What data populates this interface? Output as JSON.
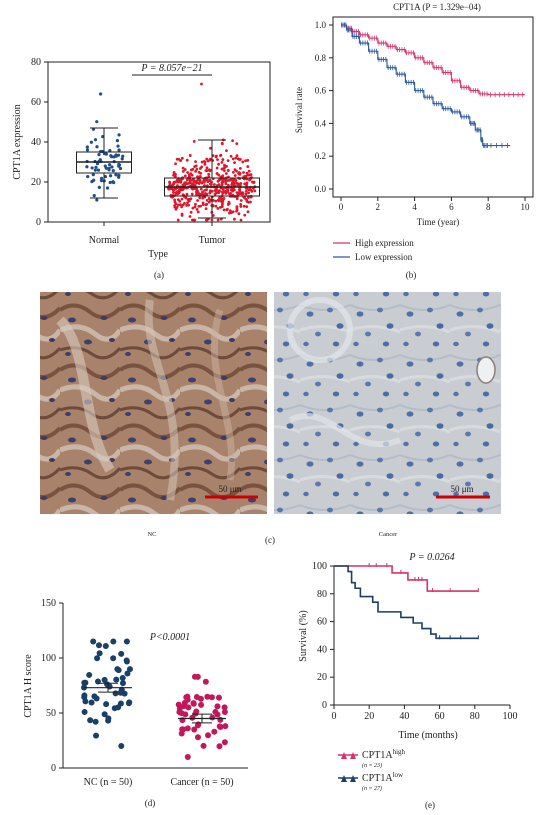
{
  "panel_labels": {
    "a": "(a)",
    "b": "(b)",
    "c": "(c)",
    "d": "(d)",
    "e": "(e)"
  },
  "colors": {
    "normal_dot": "#1f4e8c",
    "tumor_dot": "#e0162b",
    "high": "#d6336c",
    "low": "#2c5aa0",
    "nc_dot": "#1b3f66",
    "cancer_dot": "#c2185b",
    "scale_bar": "#cc0000"
  },
  "chart_data": [
    {
      "id": "a",
      "type": "scatter",
      "ylabel": "CPT1A expression",
      "xlabel": "Type",
      "categories": [
        "Normal",
        "Tumor"
      ],
      "yticks": [
        0,
        20,
        40,
        60,
        80
      ],
      "ylim": [
        0,
        80
      ],
      "pvalue_text": "P = 8.057e−21",
      "box": [
        {
          "name": "Normal",
          "whisker_low": 12,
          "q1": 24.5,
          "median": 30,
          "q3": 35,
          "whisker_high": 47,
          "n_points": 70,
          "max_point": 64
        },
        {
          "name": "Tumor",
          "whisker_low": 2,
          "q1": 13,
          "median": 17.5,
          "q3": 22,
          "whisker_high": 41,
          "n_points": 520,
          "max_point": 69
        }
      ]
    },
    {
      "id": "b",
      "type": "line",
      "title": "CPT1A (P = 1.329e−04)",
      "xlabel": "Time (year)",
      "ylabel": "Survival rate",
      "xticks": [
        0,
        2,
        4,
        6,
        8,
        10
      ],
      "yticks": [
        "0.0",
        "0.2",
        "0.4",
        "0.6",
        "0.8",
        "1.0"
      ],
      "xlim": [
        0,
        10
      ],
      "ylim": [
        0,
        1
      ],
      "legend": [
        "High expression",
        "Low expression"
      ],
      "series": [
        {
          "name": "High expression",
          "x": [
            0,
            0.3,
            0.6,
            1.0,
            1.5,
            2.0,
            2.5,
            3.0,
            3.5,
            4.0,
            4.5,
            5.0,
            5.5,
            6.0,
            6.5,
            7.0,
            7.5,
            8.0,
            9.0,
            10.0
          ],
          "y": [
            1.0,
            0.98,
            0.96,
            0.94,
            0.92,
            0.89,
            0.87,
            0.85,
            0.83,
            0.8,
            0.77,
            0.74,
            0.71,
            0.66,
            0.62,
            0.6,
            0.58,
            0.575,
            0.575,
            0.575
          ]
        },
        {
          "name": "Low expression",
          "x": [
            0,
            0.3,
            0.6,
            1.0,
            1.5,
            2.0,
            2.5,
            3.0,
            3.5,
            4.0,
            4.5,
            5.0,
            5.5,
            6.0,
            6.5,
            7.0,
            7.3,
            7.6,
            7.7,
            8.0,
            9.2
          ],
          "y": [
            1.0,
            0.97,
            0.93,
            0.89,
            0.84,
            0.79,
            0.74,
            0.7,
            0.65,
            0.6,
            0.56,
            0.52,
            0.49,
            0.47,
            0.44,
            0.4,
            0.36,
            0.3,
            0.265,
            0.265,
            0.265
          ]
        }
      ]
    },
    {
      "id": "d",
      "type": "scatter",
      "ylabel": "CPT1A H score",
      "categories": [
        "NC (n = 50)",
        "Cancer (n = 50)"
      ],
      "yticks": [
        0,
        50,
        100,
        150
      ],
      "ylim": [
        0,
        150
      ],
      "pvalue_text": "P<0.0001",
      "groups": [
        {
          "name": "NC",
          "n": 50,
          "mean": 73,
          "sd_low": 69,
          "sd_high": 77,
          "min": 20,
          "max": 115
        },
        {
          "name": "Cancer",
          "n": 50,
          "mean": 45,
          "sd_low": 41,
          "sd_high": 49,
          "min": 10,
          "max": 83
        }
      ]
    },
    {
      "id": "e",
      "type": "line",
      "xlabel": "Time (months)",
      "ylabel": "Survival (%)",
      "xticks": [
        0,
        20,
        40,
        60,
        80,
        100
      ],
      "yticks": [
        0,
        20,
        40,
        60,
        80,
        100
      ],
      "xlim": [
        0,
        100
      ],
      "ylim": [
        0,
        100
      ],
      "pvalue_text": "P = 0.0264",
      "series": [
        {
          "name": "CPT1Ahigh",
          "legend_main": "CPT1A",
          "legend_sup": "high",
          "legend_n": "(n = 23)",
          "x": [
            0,
            33,
            33,
            42,
            42,
            53,
            53,
            82
          ],
          "y": [
            100,
            100,
            95,
            95,
            90,
            90,
            82,
            82
          ],
          "censor_x": [
            20,
            24,
            30,
            38,
            46,
            48,
            50,
            56,
            66,
            82
          ]
        },
        {
          "name": "CPT1Alow",
          "legend_main": "CPT1A",
          "legend_sup": "low",
          "legend_n": "(n = 27)",
          "x": [
            0,
            8,
            8,
            10,
            10,
            12,
            12,
            15,
            15,
            22,
            22,
            25,
            25,
            38,
            38,
            45,
            45,
            50,
            50,
            55,
            55,
            58,
            58,
            82
          ],
          "y": [
            100,
            100,
            96,
            96,
            88,
            88,
            84,
            84,
            78,
            78,
            74,
            74,
            67,
            67,
            63,
            63,
            59,
            59,
            55,
            55,
            51,
            51,
            48,
            48
          ],
          "censor_x": [
            60,
            66,
            72,
            82
          ]
        }
      ]
    }
  ],
  "images": {
    "nc": {
      "caption": "NC",
      "scale_label": "50 μm"
    },
    "cancer": {
      "caption": "Cancer",
      "scale_label": "50 μm"
    }
  }
}
